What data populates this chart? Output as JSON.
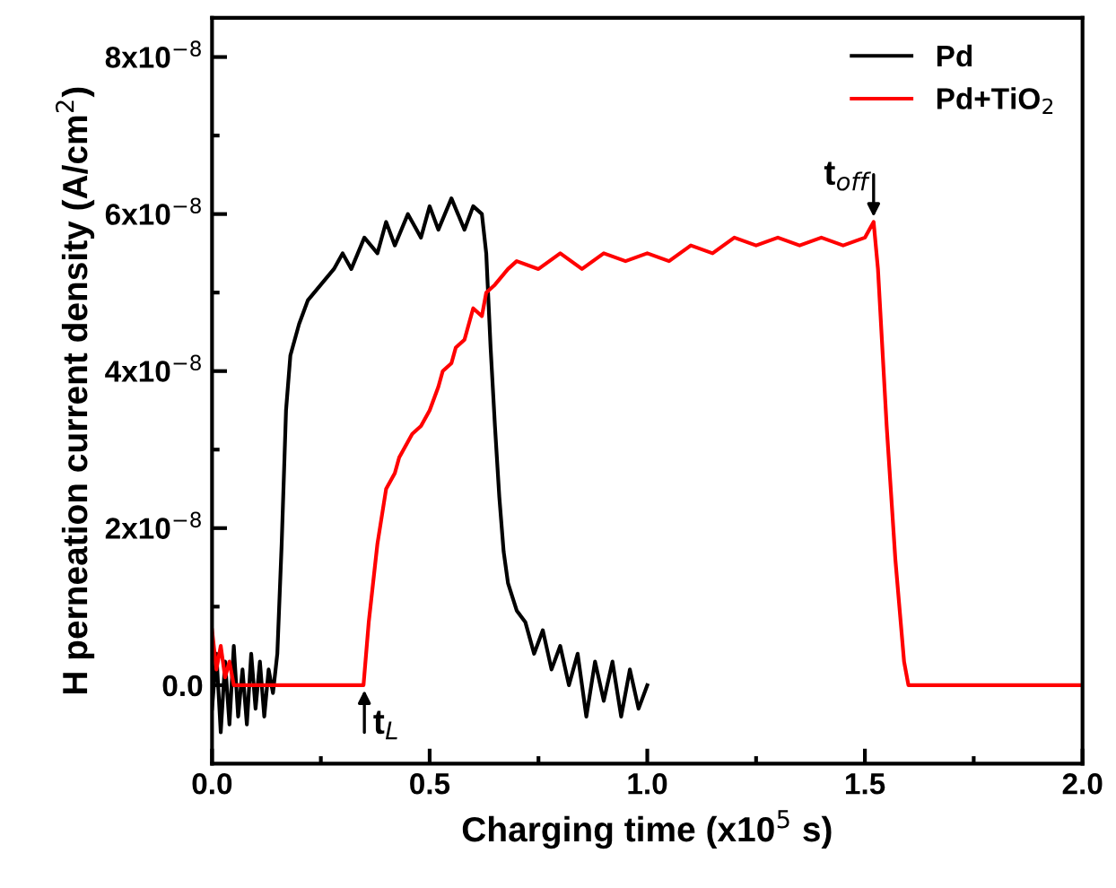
{
  "chart_data": {
    "type": "line",
    "xlabel": "Charging time (x10$^{5}$ s)",
    "ylabel": "H perneation current density (A/cm$^{2}$)",
    "xlim": [
      0,
      2.0
    ],
    "ylim": [
      -1e-08,
      8.5e-08
    ],
    "xticks": [
      {
        "value": 0,
        "label": "0.0"
      },
      {
        "value": 0.25,
        "label": null
      },
      0.5,
      {
        "value": 0.75,
        "label": null
      },
      {
        "value": 1,
        "label": "1.0"
      },
      {
        "value": 1.25,
        "label": null
      },
      1.5,
      {
        "value": 1.75,
        "label": null
      },
      {
        "value": 2,
        "label": "2.0"
      }
    ],
    "yticks": [
      {
        "value": 0,
        "label": "0.0"
      },
      {
        "value": 1e-08,
        "label": null
      },
      {
        "value": 2e-08,
        "label": "2x10$^{−8}$"
      },
      {
        "value": 3e-08,
        "label": null
      },
      {
        "value": 4e-08,
        "label": "4x10$^{−8}$"
      },
      {
        "value": 5e-08,
        "label": null
      },
      {
        "value": 6e-08,
        "label": "6x10$^{−8}$"
      },
      {
        "value": 7e-08,
        "label": null
      },
      {
        "value": 8e-08,
        "label": "8x10$^{−8}$"
      }
    ],
    "legend": "top right",
    "grid": false,
    "line_style": "solid",
    "marker": "none",
    "series": [
      {
        "name": "Pd",
        "color": "#000000",
        "x": [
          0.0,
          0.01,
          0.02,
          0.03,
          0.04,
          0.05,
          0.06,
          0.07,
          0.08,
          0.09,
          0.1,
          0.11,
          0.12,
          0.13,
          0.14,
          0.15,
          0.16,
          0.17,
          0.18,
          0.19,
          0.2,
          0.22,
          0.25,
          0.28,
          0.3,
          0.32,
          0.35,
          0.38,
          0.4,
          0.42,
          0.45,
          0.48,
          0.5,
          0.52,
          0.55,
          0.58,
          0.6,
          0.62,
          0.63,
          0.64,
          0.65,
          0.66,
          0.67,
          0.68,
          0.7,
          0.72,
          0.74,
          0.76,
          0.78,
          0.8,
          0.82,
          0.84,
          0.86,
          0.88,
          0.9,
          0.92,
          0.94,
          0.96,
          0.98,
          1.0
        ],
        "values": [
          -3e-09,
          4e-09,
          -6e-09,
          3e-09,
          -5e-09,
          5e-09,
          -4e-09,
          2e-09,
          -5e-09,
          4e-09,
          -3e-09,
          3e-09,
          -4e-09,
          2e-09,
          -1e-09,
          4e-09,
          1.8e-08,
          3.5e-08,
          4.2e-08,
          4.4e-08,
          4.6e-08,
          4.9e-08,
          5.1e-08,
          5.3e-08,
          5.5e-08,
          5.3e-08,
          5.7e-08,
          5.5e-08,
          5.9e-08,
          5.6e-08,
          6e-08,
          5.7e-08,
          6.1e-08,
          5.8e-08,
          6.2e-08,
          5.8e-08,
          6.1e-08,
          6e-08,
          5.5e-08,
          4.3e-08,
          3.3e-08,
          2.4e-08,
          1.7e-08,
          1.3e-08,
          9.5e-09,
          8e-09,
          4e-09,
          7e-09,
          2e-09,
          5e-09,
          0.0,
          4e-09,
          -4e-09,
          3e-09,
          -2e-09,
          3e-09,
          -4e-09,
          2e-09,
          -3e-09,
          0.0
        ]
      },
      {
        "name": "Pd+TiO$_{2}$",
        "color": "#ff0000",
        "x": [
          0.0,
          0.01,
          0.02,
          0.03,
          0.04,
          0.05,
          0.1,
          0.2,
          0.3,
          0.348,
          0.36,
          0.38,
          0.4,
          0.42,
          0.43,
          0.45,
          0.46,
          0.48,
          0.5,
          0.52,
          0.53,
          0.55,
          0.56,
          0.58,
          0.6,
          0.62,
          0.63,
          0.65,
          0.68,
          0.7,
          0.75,
          0.8,
          0.85,
          0.9,
          0.95,
          1.0,
          1.05,
          1.1,
          1.15,
          1.2,
          1.25,
          1.3,
          1.35,
          1.4,
          1.45,
          1.5,
          1.52,
          1.53,
          1.55,
          1.57,
          1.59,
          1.6,
          1.7,
          1.8,
          1.9,
          2.0
        ],
        "values": [
          7e-09,
          2e-09,
          5e-09,
          1e-09,
          3e-09,
          0.0,
          0.0,
          0.0,
          0.0,
          0.0,
          8e-09,
          1.8e-08,
          2.5e-08,
          2.7e-08,
          2.9e-08,
          3.1e-08,
          3.2e-08,
          3.3e-08,
          3.5e-08,
          3.8e-08,
          4e-08,
          4.1e-08,
          4.3e-08,
          4.4e-08,
          4.8e-08,
          4.7e-08,
          5e-08,
          5.1e-08,
          5.3e-08,
          5.4e-08,
          5.3e-08,
          5.5e-08,
          5.3e-08,
          5.5e-08,
          5.4e-08,
          5.5e-08,
          5.4e-08,
          5.6e-08,
          5.5e-08,
          5.7e-08,
          5.6e-08,
          5.7e-08,
          5.6e-08,
          5.7e-08,
          5.6e-08,
          5.7e-08,
          5.9e-08,
          5.3e-08,
          3.3e-08,
          1.6e-08,
          3e-09,
          0.0,
          0.0,
          0.0,
          0.0,
          0.0
        ]
      }
    ],
    "annotations": [
      {
        "text": "t$_{L}$",
        "x": 0.35,
        "y": 0
      },
      {
        "text": "t$_{off}$",
        "x": 1.52,
        "y": 5.9e-08
      }
    ]
  }
}
